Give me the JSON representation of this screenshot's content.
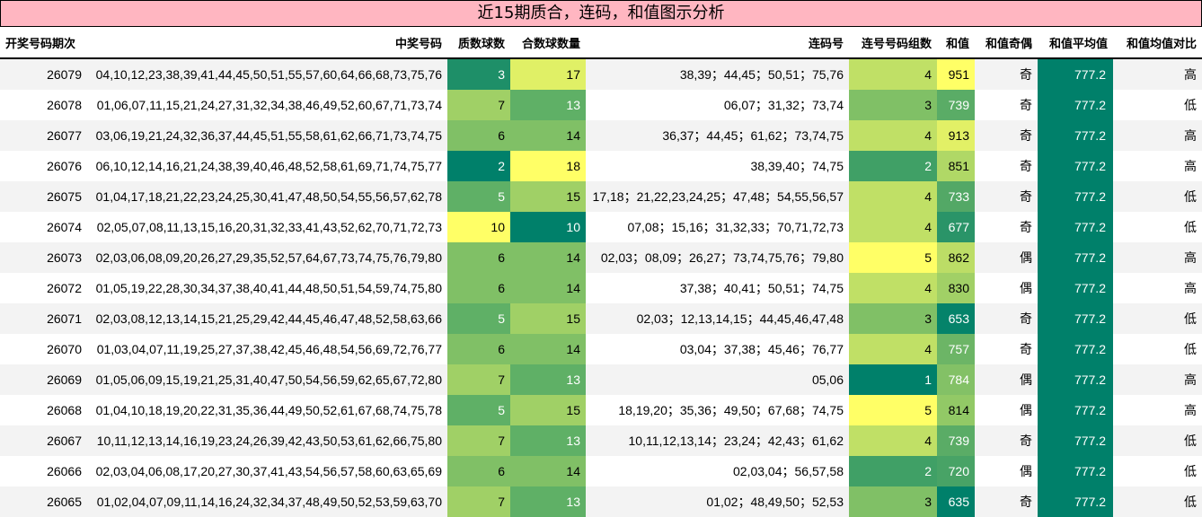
{
  "title": "近15期质合，连码，和值图示分析",
  "headers": [
    "开奖号码期次",
    "中奖号码",
    "质数球数",
    "合数球数量",
    "连码号",
    "连号号码组数",
    "和值",
    "和值奇偶",
    "和值平均值",
    "和值均值对比"
  ],
  "rows": [
    {
      "issue": "26079",
      "numbers": "04,10,12,23,38,39,41,44,45,50,51,55,57,60,64,66,68,73,75,76",
      "prime": "3",
      "composite": "17",
      "consec": "38,39；44,45；50,51；75,76",
      "groups": "4",
      "sum": "951",
      "parity": "奇",
      "avg": "777.2",
      "cmp": "高"
    },
    {
      "issue": "26078",
      "numbers": "01,06,07,11,15,21,24,27,31,32,34,38,46,49,52,60,67,71,73,74",
      "prime": "7",
      "composite": "13",
      "consec": "06,07；31,32；73,74",
      "groups": "3",
      "sum": "739",
      "parity": "奇",
      "avg": "777.2",
      "cmp": "低"
    },
    {
      "issue": "26077",
      "numbers": "03,06,19,21,24,32,36,37,44,45,51,55,58,61,62,66,71,73,74,75",
      "prime": "6",
      "composite": "14",
      "consec": "36,37；44,45；61,62；73,74,75",
      "groups": "4",
      "sum": "913",
      "parity": "奇",
      "avg": "777.2",
      "cmp": "高"
    },
    {
      "issue": "26076",
      "numbers": "06,10,12,14,16,21,24,38,39,40,46,48,52,58,61,69,71,74,75,77",
      "prime": "2",
      "composite": "18",
      "consec": "38,39,40；74,75",
      "groups": "2",
      "sum": "851",
      "parity": "奇",
      "avg": "777.2",
      "cmp": "高"
    },
    {
      "issue": "26075",
      "numbers": "01,04,17,18,21,22,23,24,25,30,41,47,48,50,54,55,56,57,62,78",
      "prime": "5",
      "composite": "15",
      "consec": "17,18；21,22,23,24,25；47,48；54,55,56,57",
      "groups": "4",
      "sum": "733",
      "parity": "奇",
      "avg": "777.2",
      "cmp": "低"
    },
    {
      "issue": "26074",
      "numbers": "02,05,07,08,11,13,15,16,20,31,32,33,41,43,52,62,70,71,72,73",
      "prime": "10",
      "composite": "10",
      "consec": "07,08；15,16；31,32,33；70,71,72,73",
      "groups": "4",
      "sum": "677",
      "parity": "奇",
      "avg": "777.2",
      "cmp": "低"
    },
    {
      "issue": "26073",
      "numbers": "02,03,06,08,09,20,26,27,29,35,52,57,64,67,73,74,75,76,79,80",
      "prime": "6",
      "composite": "14",
      "consec": "02,03；08,09；26,27；73,74,75,76；79,80",
      "groups": "5",
      "sum": "862",
      "parity": "偶",
      "avg": "777.2",
      "cmp": "高"
    },
    {
      "issue": "26072",
      "numbers": "01,05,19,22,28,30,34,37,38,40,41,44,48,50,51,54,59,74,75,80",
      "prime": "6",
      "composite": "14",
      "consec": "37,38；40,41；50,51；74,75",
      "groups": "4",
      "sum": "830",
      "parity": "偶",
      "avg": "777.2",
      "cmp": "高"
    },
    {
      "issue": "26071",
      "numbers": "02,03,08,12,13,14,15,21,25,29,42,44,45,46,47,48,52,58,63,66",
      "prime": "5",
      "composite": "15",
      "consec": "02,03；12,13,14,15；44,45,46,47,48",
      "groups": "3",
      "sum": "653",
      "parity": "奇",
      "avg": "777.2",
      "cmp": "低"
    },
    {
      "issue": "26070",
      "numbers": "01,03,04,07,11,19,25,27,37,38,42,45,46,48,54,56,69,72,76,77",
      "prime": "6",
      "composite": "14",
      "consec": "03,04；37,38；45,46；76,77",
      "groups": "4",
      "sum": "757",
      "parity": "奇",
      "avg": "777.2",
      "cmp": "低"
    },
    {
      "issue": "26069",
      "numbers": "01,05,06,09,15,19,21,25,31,40,47,50,54,56,59,62,65,67,72,80",
      "prime": "7",
      "composite": "13",
      "consec": "05,06",
      "groups": "1",
      "sum": "784",
      "parity": "偶",
      "avg": "777.2",
      "cmp": "高"
    },
    {
      "issue": "26068",
      "numbers": "01,04,10,18,19,20,22,31,35,36,44,49,50,52,61,67,68,74,75,78",
      "prime": "5",
      "composite": "15",
      "consec": "18,19,20；35,36；49,50；67,68；74,75",
      "groups": "5",
      "sum": "814",
      "parity": "偶",
      "avg": "777.2",
      "cmp": "高"
    },
    {
      "issue": "26067",
      "numbers": "10,11,12,13,14,16,19,23,24,26,39,42,43,50,53,61,62,66,75,80",
      "prime": "7",
      "composite": "13",
      "consec": "10,11,12,13,14；23,24；42,43；61,62",
      "groups": "4",
      "sum": "739",
      "parity": "奇",
      "avg": "777.2",
      "cmp": "低"
    },
    {
      "issue": "26066",
      "numbers": "02,03,04,06,08,17,20,27,30,37,41,43,54,56,57,58,60,63,65,69",
      "prime": "6",
      "composite": "14",
      "consec": "02,03,04；56,57,58",
      "groups": "2",
      "sum": "720",
      "parity": "偶",
      "avg": "777.2",
      "cmp": "低"
    },
    {
      "issue": "26065",
      "numbers": "01,02,04,07,09,11,14,16,24,32,34,37,48,49,50,52,53,59,63,70",
      "prime": "7",
      "composite": "13",
      "consec": "01,02；48,49,50；52,53",
      "groups": "3",
      "sum": "635",
      "parity": "奇",
      "avg": "777.2",
      "cmp": "低"
    }
  ],
  "colors": {
    "title_bg": "#ffb6c1",
    "avg_bg": "#00806a",
    "prime": {
      "2": "#00806a",
      "3": "#1e8f68",
      "5": "#5fb066",
      "6": "#80c066",
      "7": "#a0d066",
      "10": "#ffff66"
    },
    "composite": {
      "10": "#00806a",
      "13": "#5fb066",
      "14": "#80c066",
      "15": "#a0d066",
      "17": "#e0f066",
      "18": "#ffff66"
    },
    "groups": {
      "1": "#00806a",
      "2": "#40a066",
      "3": "#80c066",
      "4": "#c0e066",
      "5": "#ffff66"
    },
    "sum": {
      "635": "#00806a",
      "653": "#05836a",
      "677": "#2a9468",
      "720": "#48a366",
      "733": "#53a866",
      "739": "#5aac66",
      "757": "#6cb566",
      "784": "#83c166",
      "814": "#92c966",
      "830": "#a1d066",
      "851": "#b0d866",
      "862": "#bcdd66",
      "913": "#e2f066",
      "951": "#ffff66"
    }
  },
  "dark_text_threshold": {
    "prime": 6,
    "composite": 14,
    "groups": 3,
    "sum": 800
  }
}
